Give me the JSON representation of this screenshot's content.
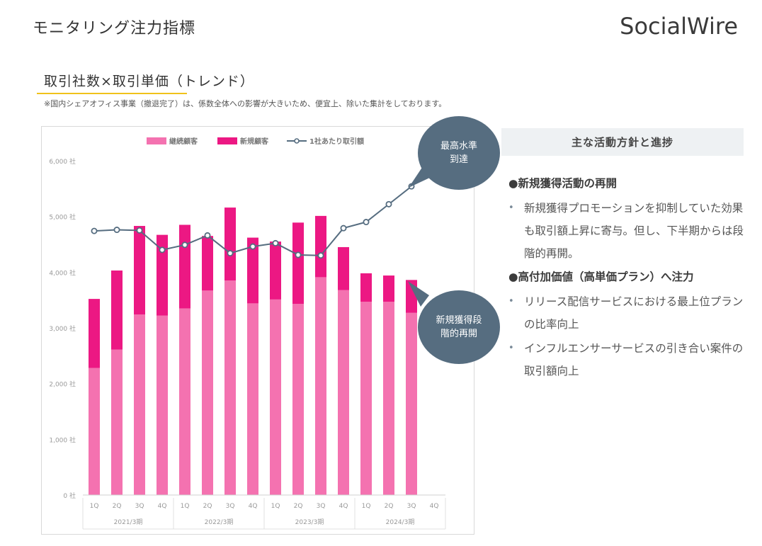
{
  "header": {
    "page_title": "モニタリング注力指標",
    "logo": "SocialWire"
  },
  "section": {
    "title": "取引社数×取引単価（トレンド）",
    "note": "※国内シェアオフィス事業（撤退完了）は、係数全体への影響が大きいため、便宜上、除いた集計をしております。"
  },
  "chart_data": {
    "type": "bar",
    "stacked": true,
    "categories": [
      "1Q",
      "2Q",
      "3Q",
      "4Q",
      "1Q",
      "2Q",
      "3Q",
      "4Q",
      "1Q",
      "2Q",
      "3Q",
      "4Q",
      "1Q",
      "2Q",
      "3Q",
      "4Q"
    ],
    "groups": [
      {
        "label": "2021/3期",
        "start": 0,
        "count": 4
      },
      {
        "label": "2022/3期",
        "start": 4,
        "count": 4
      },
      {
        "label": "2023/3期",
        "start": 8,
        "count": 4
      },
      {
        "label": "2024/3期",
        "start": 12,
        "count": 4
      }
    ],
    "series": [
      {
        "name": "継続顧客",
        "kind": "bar",
        "color": "#f472b0",
        "values": [
          2280,
          2610,
          3240,
          3220,
          3350,
          3670,
          3850,
          3440,
          3510,
          3430,
          3910,
          3680,
          3470,
          3470,
          3270,
          null
        ]
      },
      {
        "name": "新規顧客",
        "kind": "bar",
        "color": "#ec1883",
        "values": [
          1240,
          1420,
          1590,
          1450,
          1500,
          980,
          1310,
          1180,
          1040,
          1460,
          1100,
          770,
          510,
          470,
          590,
          null
        ]
      },
      {
        "name": "1社あたり取引額",
        "kind": "line",
        "color": "#566d80",
        "values": [
          4740,
          4760,
          4750,
          4400,
          4490,
          4660,
          4340,
          4460,
          4520,
          4310,
          4300,
          4790,
          4900,
          5220,
          5540,
          null
        ]
      }
    ],
    "y_ticks": [
      "0 社",
      "1,000 社",
      "2,000 社",
      "3,000 社",
      "4,000 社",
      "5,000 社",
      "6,000 社"
    ],
    "ylim": [
      0,
      6000
    ],
    "legend_position": "top",
    "grid": false
  },
  "callouts": {
    "top": {
      "line1": "最高水準",
      "line2": "到達"
    },
    "bottom": {
      "line1": "新規獲得段",
      "line2": "階的再開"
    }
  },
  "panel": {
    "title": "主な活動方針と進捗",
    "sections": [
      {
        "heading": "●新規獲得活動の再開",
        "bullets": [
          "新規獲得プロモーションを抑制していた効果も取引額上昇に寄与。但し、下半期からは段階的再開。"
        ]
      },
      {
        "heading": "●高付加価値（高単価プラン）へ注力",
        "bullets": [
          "リリース配信サービスにおける最上位プランの比率向上",
          "インフルエンサーサービスの引き合い案件の取引額向上"
        ]
      }
    ]
  }
}
